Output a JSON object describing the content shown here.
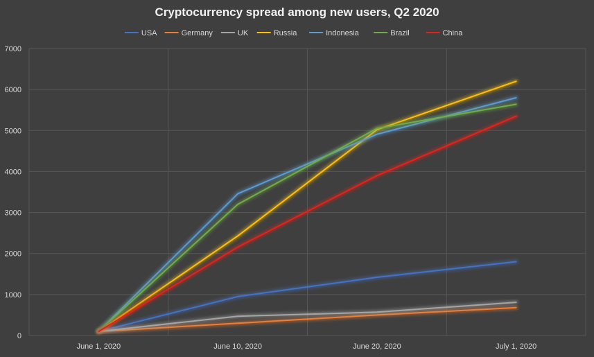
{
  "chart_data": {
    "type": "line",
    "title": "Cryptocurrency spread among new users, Q2 2020",
    "xlabel": "",
    "ylabel": "",
    "categories": [
      "June 1, 2020",
      "June 10, 2020",
      "June 20, 2020",
      "July 1, 2020"
    ],
    "ylim": [
      0,
      7000
    ],
    "yticks": [
      0,
      1000,
      2000,
      3000,
      4000,
      5000,
      6000,
      7000
    ],
    "grid": true,
    "legend_position": "top",
    "series": [
      {
        "name": "USA",
        "color": "#4472c4",
        "values": [
          100,
          950,
          1420,
          1800
        ]
      },
      {
        "name": "Germany",
        "color": "#ed7d31",
        "values": [
          100,
          300,
          500,
          680
        ]
      },
      {
        "name": "UK",
        "color": "#a5a5a5",
        "values": [
          100,
          470,
          570,
          810
        ]
      },
      {
        "name": "Russia",
        "color": "#ffc000",
        "values": [
          100,
          2430,
          5020,
          6200
        ]
      },
      {
        "name": "Indonesia",
        "color": "#5b9bd5",
        "values": [
          100,
          3460,
          4910,
          5800
        ]
      },
      {
        "name": "Brazil",
        "color": "#70ad47",
        "values": [
          100,
          3200,
          5050,
          5640
        ]
      },
      {
        "name": "China",
        "color": "#e8201a",
        "values": [
          100,
          2160,
          3900,
          5350
        ]
      }
    ]
  }
}
